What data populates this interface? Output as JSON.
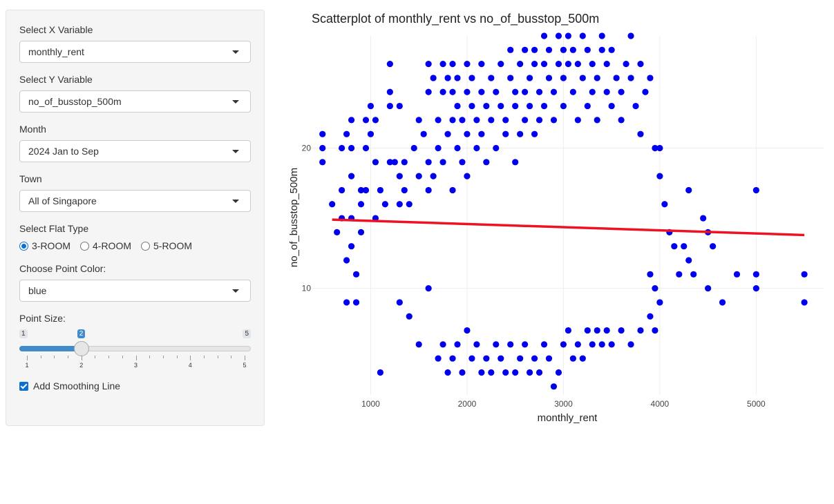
{
  "sidebar": {
    "x_var": {
      "label": "Select X Variable",
      "value": "monthly_rent"
    },
    "y_var": {
      "label": "Select Y Variable",
      "value": "no_of_busstop_500m"
    },
    "month": {
      "label": "Month",
      "value": "2024 Jan to Sep"
    },
    "town": {
      "label": "Town",
      "value": "All of Singapore"
    },
    "flat_type": {
      "label": "Select Flat Type",
      "options": [
        "3-ROOM",
        "4-ROOM",
        "5-ROOM"
      ],
      "selected": "3-ROOM"
    },
    "point_color": {
      "label": "Choose Point Color:",
      "value": "blue"
    },
    "point_size": {
      "label": "Point Size:",
      "min": "1",
      "max": "5",
      "value": "2",
      "ticks": [
        "1",
        "2",
        "3",
        "4",
        "5"
      ]
    },
    "smoothing": {
      "label": "Add Smoothing Line",
      "checked": true
    }
  },
  "colors": {
    "points": "#0000ee",
    "smooth": "#ee1122",
    "grid": "#eeeeee",
    "slider_accent": "#428bca"
  },
  "chart_data": {
    "type": "scatter",
    "title": "Scatterplot of monthly_rent vs no_of_busstop_500m",
    "xlabel": "monthly_rent",
    "ylabel": "no_of_busstop_500m",
    "xlim": [
      380,
      5700
    ],
    "ylim": [
      2.4,
      28
    ],
    "xticks": [
      "1000",
      "2000",
      "3000",
      "4000",
      "5000"
    ],
    "yticks": [
      "10",
      "20"
    ],
    "grid": true,
    "smoothing_line": {
      "x": [
        600,
        5500
      ],
      "y": [
        14.9,
        13.8
      ]
    },
    "series": [
      {
        "points": [
          [
            500,
            21
          ],
          [
            500,
            20
          ],
          [
            500,
            19
          ],
          [
            600,
            16
          ],
          [
            650,
            14
          ],
          [
            700,
            17
          ],
          [
            700,
            20
          ],
          [
            700,
            15
          ],
          [
            750,
            21
          ],
          [
            750,
            12
          ],
          [
            750,
            9
          ],
          [
            800,
            22
          ],
          [
            800,
            20
          ],
          [
            800,
            18
          ],
          [
            800,
            15
          ],
          [
            800,
            13
          ],
          [
            850,
            11
          ],
          [
            850,
            9
          ],
          [
            900,
            16
          ],
          [
            900,
            17
          ],
          [
            900,
            14
          ],
          [
            950,
            22
          ],
          [
            950,
            20
          ],
          [
            950,
            17
          ],
          [
            1000,
            23
          ],
          [
            1000,
            21
          ],
          [
            1050,
            22
          ],
          [
            1050,
            19
          ],
          [
            1050,
            15
          ],
          [
            1100,
            17
          ],
          [
            1150,
            16
          ],
          [
            1200,
            26
          ],
          [
            1200,
            24
          ],
          [
            1200,
            23
          ],
          [
            1200,
            19
          ],
          [
            1250,
            19
          ],
          [
            1300,
            18
          ],
          [
            1300,
            23
          ],
          [
            1300,
            16
          ],
          [
            1350,
            19
          ],
          [
            1350,
            17
          ],
          [
            1400,
            16
          ],
          [
            1450,
            20
          ],
          [
            1500,
            22
          ],
          [
            1500,
            18
          ],
          [
            1550,
            21
          ],
          [
            1600,
            26
          ],
          [
            1600,
            24
          ],
          [
            1600,
            19
          ],
          [
            1600,
            17
          ],
          [
            1650,
            25
          ],
          [
            1650,
            18
          ],
          [
            1700,
            22
          ],
          [
            1700,
            20
          ],
          [
            1750,
            26
          ],
          [
            1750,
            24
          ],
          [
            1750,
            19
          ],
          [
            1800,
            25
          ],
          [
            1800,
            21
          ],
          [
            1850,
            26
          ],
          [
            1850,
            24
          ],
          [
            1850,
            22
          ],
          [
            1850,
            17
          ],
          [
            1900,
            25
          ],
          [
            1900,
            23
          ],
          [
            1900,
            20
          ],
          [
            1950,
            22
          ],
          [
            1950,
            19
          ],
          [
            2000,
            26
          ],
          [
            2000,
            24
          ],
          [
            2000,
            21
          ],
          [
            2000,
            18
          ],
          [
            2050,
            25
          ],
          [
            2050,
            23
          ],
          [
            2100,
            22
          ],
          [
            2100,
            20
          ],
          [
            2150,
            26
          ],
          [
            2150,
            24
          ],
          [
            2150,
            21
          ],
          [
            2200,
            23
          ],
          [
            2200,
            19
          ],
          [
            2250,
            25
          ],
          [
            2250,
            22
          ],
          [
            2300,
            24
          ],
          [
            2300,
            20
          ],
          [
            2350,
            26
          ],
          [
            2350,
            23
          ],
          [
            2400,
            22
          ],
          [
            2400,
            21
          ],
          [
            2450,
            25
          ],
          [
            2450,
            27
          ],
          [
            2500,
            24
          ],
          [
            2500,
            23
          ],
          [
            2500,
            19
          ],
          [
            2550,
            26
          ],
          [
            2550,
            21
          ],
          [
            2600,
            27
          ],
          [
            2600,
            24
          ],
          [
            2600,
            22
          ],
          [
            2650,
            25
          ],
          [
            2650,
            23
          ],
          [
            2700,
            27
          ],
          [
            2700,
            26
          ],
          [
            2700,
            21
          ],
          [
            2750,
            24
          ],
          [
            2750,
            22
          ],
          [
            2800,
            28
          ],
          [
            2800,
            26
          ],
          [
            2800,
            23
          ],
          [
            2850,
            27
          ],
          [
            2850,
            25
          ],
          [
            2900,
            24
          ],
          [
            2900,
            22
          ],
          [
            2950,
            28
          ],
          [
            2950,
            26
          ],
          [
            3000,
            27
          ],
          [
            3000,
            25
          ],
          [
            3000,
            23
          ],
          [
            3050,
            28
          ],
          [
            3050,
            26
          ],
          [
            3100,
            27
          ],
          [
            3100,
            24
          ],
          [
            3150,
            26
          ],
          [
            3150,
            22
          ],
          [
            3200,
            28
          ],
          [
            3200,
            25
          ],
          [
            3250,
            27
          ],
          [
            3250,
            23
          ],
          [
            3300,
            26
          ],
          [
            3300,
            24
          ],
          [
            3350,
            25
          ],
          [
            3350,
            22
          ],
          [
            3400,
            28
          ],
          [
            3400,
            27
          ],
          [
            3450,
            26
          ],
          [
            3450,
            24
          ],
          [
            3500,
            27
          ],
          [
            3500,
            23
          ],
          [
            3550,
            25
          ],
          [
            3600,
            24
          ],
          [
            3600,
            22
          ],
          [
            3650,
            26
          ],
          [
            3700,
            28
          ],
          [
            3700,
            25
          ],
          [
            3750,
            23
          ],
          [
            3800,
            26
          ],
          [
            3800,
            21
          ],
          [
            3850,
            24
          ],
          [
            3900,
            25
          ],
          [
            3950,
            20
          ],
          [
            4000,
            20
          ],
          [
            4000,
            18
          ],
          [
            4050,
            16
          ],
          [
            4100,
            14
          ],
          [
            4150,
            13
          ],
          [
            4200,
            11
          ],
          [
            4250,
            13
          ],
          [
            4300,
            17
          ],
          [
            4300,
            12
          ],
          [
            4350,
            11
          ],
          [
            4450,
            15
          ],
          [
            4500,
            14
          ],
          [
            4500,
            10
          ],
          [
            4550,
            13
          ],
          [
            4650,
            9
          ],
          [
            4800,
            11
          ],
          [
            5000,
            17
          ],
          [
            5000,
            11
          ],
          [
            5000,
            10
          ],
          [
            5500,
            11
          ],
          [
            5500,
            9
          ],
          [
            1100,
            4
          ],
          [
            1300,
            9
          ],
          [
            1400,
            8
          ],
          [
            1500,
            6
          ],
          [
            1600,
            10
          ],
          [
            1700,
            5
          ],
          [
            1750,
            6
          ],
          [
            1800,
            4
          ],
          [
            1850,
            5
          ],
          [
            1900,
            6
          ],
          [
            1950,
            4
          ],
          [
            2000,
            7
          ],
          [
            2050,
            5
          ],
          [
            2100,
            6
          ],
          [
            2150,
            4
          ],
          [
            2200,
            5
          ],
          [
            2250,
            4
          ],
          [
            2300,
            6
          ],
          [
            2350,
            5
          ],
          [
            2400,
            4
          ],
          [
            2450,
            6
          ],
          [
            2500,
            4
          ],
          [
            2550,
            5
          ],
          [
            2600,
            6
          ],
          [
            2650,
            4
          ],
          [
            2700,
            5
          ],
          [
            2750,
            4
          ],
          [
            2800,
            6
          ],
          [
            2850,
            5
          ],
          [
            2900,
            3
          ],
          [
            2950,
            4
          ],
          [
            3000,
            6
          ],
          [
            3050,
            7
          ],
          [
            3100,
            5
          ],
          [
            3150,
            6
          ],
          [
            3200,
            5
          ],
          [
            3250,
            7
          ],
          [
            3300,
            6
          ],
          [
            3350,
            7
          ],
          [
            3400,
            6
          ],
          [
            3450,
            7
          ],
          [
            3500,
            6
          ],
          [
            3600,
            7
          ],
          [
            3700,
            6
          ],
          [
            3800,
            7
          ],
          [
            3900,
            8
          ],
          [
            3950,
            7
          ],
          [
            4000,
            9
          ],
          [
            3950,
            10
          ],
          [
            3900,
            11
          ]
        ]
      }
    ]
  }
}
